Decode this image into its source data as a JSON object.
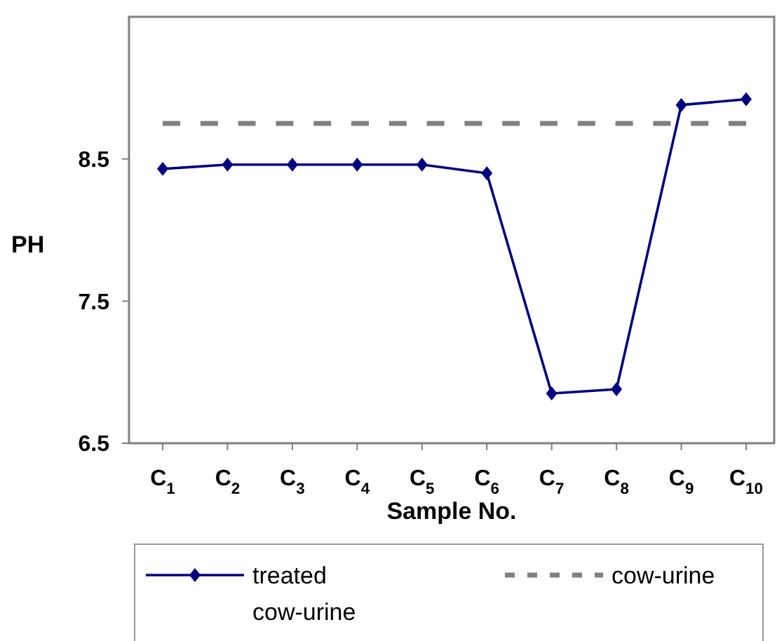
{
  "chart_data": {
    "type": "line",
    "xlabel": "Sample No.",
    "ylabel": "PH",
    "categories": [
      "C$_{1}$",
      "C$_{2}$",
      "C$_{3}$",
      "C$_{4}$",
      "C$_{5}$",
      "C$_{6}$",
      "C$_{7}$",
      "C$_{8}$",
      "C$_{9}$",
      "C$_{10}$"
    ],
    "series": [
      {
        "name": "treated cow-urine",
        "color": "#000080",
        "marker": "diamond",
        "line_style": "solid",
        "values": [
          8.43,
          8.46,
          8.46,
          8.46,
          8.46,
          8.4,
          6.85,
          6.88,
          8.88,
          8.92
        ]
      },
      {
        "name": "cow-urine",
        "color": "#808080",
        "marker": "none",
        "line_style": "dashed",
        "values": [
          8.75,
          8.75,
          8.75,
          8.75,
          8.75,
          8.75,
          8.75,
          8.75,
          8.75,
          8.75
        ]
      }
    ],
    "ylim": [
      6.5,
      9.5
    ],
    "yticks": [
      6.5,
      7.5,
      8.5
    ],
    "grid": false,
    "legend": "bottom"
  }
}
